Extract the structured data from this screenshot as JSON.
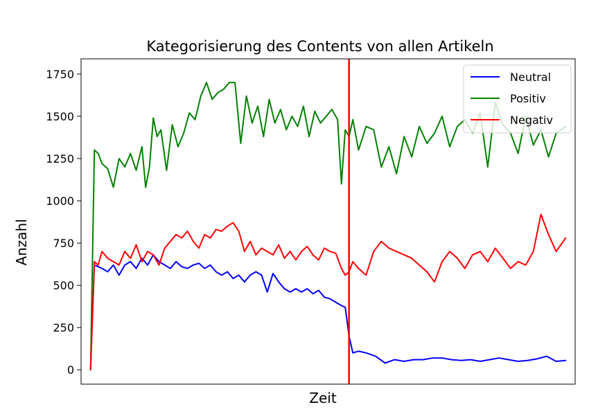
{
  "chart_data": {
    "type": "line",
    "title": "Kategorisierung des Contents von allen Artikeln",
    "xlabel": "Zeit",
    "ylabel": "Anzahl",
    "ylim": [
      -85,
      1840
    ],
    "xlim": [
      -10,
      510
    ],
    "yticks": [
      0,
      250,
      500,
      750,
      1000,
      1250,
      1500,
      1750
    ],
    "grid": false,
    "legend_position": "top-right",
    "vline": {
      "x": 272,
      "color": "#ff0000"
    },
    "series": [
      {
        "name": "Neutral",
        "color": "#0000ff",
        "x": [
          0,
          4,
          8,
          12,
          18,
          24,
          30,
          36,
          42,
          48,
          54,
          60,
          66,
          72,
          78,
          84,
          90,
          96,
          102,
          108,
          114,
          120,
          126,
          132,
          138,
          144,
          150,
          156,
          162,
          168,
          174,
          180,
          186,
          192,
          198,
          204,
          210,
          216,
          222,
          228,
          234,
          240,
          246,
          252,
          258,
          264,
          268,
          272,
          276,
          282,
          290,
          300,
          310,
          320,
          330,
          340,
          350,
          360,
          370,
          380,
          390,
          400,
          410,
          420,
          430,
          440,
          450,
          460,
          470,
          480,
          490,
          500
        ],
        "values": [
          0,
          620,
          610,
          600,
          580,
          620,
          560,
          620,
          640,
          600,
          660,
          620,
          680,
          640,
          620,
          600,
          640,
          610,
          600,
          620,
          630,
          600,
          620,
          580,
          560,
          580,
          540,
          560,
          520,
          560,
          580,
          560,
          460,
          570,
          520,
          480,
          460,
          480,
          460,
          480,
          450,
          470,
          430,
          420,
          400,
          380,
          370,
          200,
          100,
          110,
          100,
          80,
          40,
          60,
          50,
          60,
          60,
          70,
          70,
          60,
          55,
          60,
          50,
          60,
          70,
          60,
          50,
          55,
          65,
          80,
          50,
          55
        ]
      },
      {
        "name": "Positiv",
        "color": "#008000",
        "x": [
          0,
          4,
          8,
          12,
          18,
          24,
          30,
          36,
          42,
          48,
          54,
          58,
          62,
          66,
          70,
          74,
          80,
          86,
          92,
          98,
          104,
          110,
          116,
          122,
          128,
          134,
          140,
          146,
          152,
          158,
          164,
          170,
          176,
          182,
          188,
          194,
          200,
          206,
          212,
          218,
          224,
          230,
          236,
          242,
          248,
          254,
          260,
          264,
          268,
          272,
          276,
          282,
          290,
          298,
          306,
          314,
          322,
          330,
          338,
          346,
          354,
          362,
          370,
          378,
          386,
          394,
          402,
          410,
          418,
          426,
          434,
          442,
          450,
          458,
          466,
          474,
          482,
          490,
          500
        ],
        "values": [
          0,
          1300,
          1280,
          1220,
          1190,
          1080,
          1250,
          1200,
          1280,
          1180,
          1320,
          1080,
          1200,
          1490,
          1380,
          1420,
          1180,
          1450,
          1320,
          1400,
          1520,
          1480,
          1620,
          1700,
          1600,
          1640,
          1660,
          1700,
          1700,
          1340,
          1620,
          1460,
          1560,
          1380,
          1600,
          1460,
          1540,
          1420,
          1500,
          1440,
          1560,
          1380,
          1530,
          1460,
          1500,
          1540,
          1480,
          1100,
          1420,
          1380,
          1480,
          1300,
          1440,
          1420,
          1200,
          1320,
          1160,
          1380,
          1260,
          1440,
          1340,
          1400,
          1500,
          1320,
          1440,
          1480,
          1400,
          1520,
          1200,
          1580,
          1450,
          1400,
          1280,
          1500,
          1330,
          1420,
          1260,
          1400,
          1440
        ]
      },
      {
        "name": "Negativ",
        "color": "#ff0000",
        "x": [
          0,
          4,
          8,
          12,
          18,
          24,
          30,
          36,
          42,
          48,
          54,
          60,
          66,
          72,
          78,
          84,
          90,
          96,
          102,
          108,
          114,
          120,
          126,
          132,
          138,
          144,
          150,
          156,
          162,
          168,
          174,
          180,
          186,
          192,
          198,
          204,
          210,
          216,
          222,
          228,
          234,
          240,
          246,
          252,
          258,
          264,
          268,
          272,
          276,
          282,
          290,
          298,
          306,
          314,
          322,
          330,
          338,
          346,
          354,
          362,
          370,
          378,
          386,
          394,
          402,
          410,
          418,
          426,
          434,
          442,
          450,
          458,
          466,
          474,
          482,
          490,
          500
        ],
        "values": [
          0,
          640,
          620,
          700,
          660,
          640,
          620,
          700,
          660,
          740,
          640,
          700,
          680,
          620,
          720,
          760,
          800,
          780,
          820,
          760,
          720,
          800,
          780,
          830,
          820,
          850,
          870,
          820,
          700,
          760,
          680,
          720,
          700,
          680,
          740,
          660,
          700,
          650,
          700,
          730,
          680,
          650,
          720,
          700,
          690,
          600,
          560,
          580,
          640,
          600,
          560,
          700,
          760,
          720,
          700,
          680,
          660,
          620,
          580,
          520,
          640,
          700,
          660,
          600,
          680,
          700,
          640,
          720,
          660,
          600,
          640,
          620,
          700,
          920,
          800,
          700,
          780
        ]
      }
    ]
  }
}
